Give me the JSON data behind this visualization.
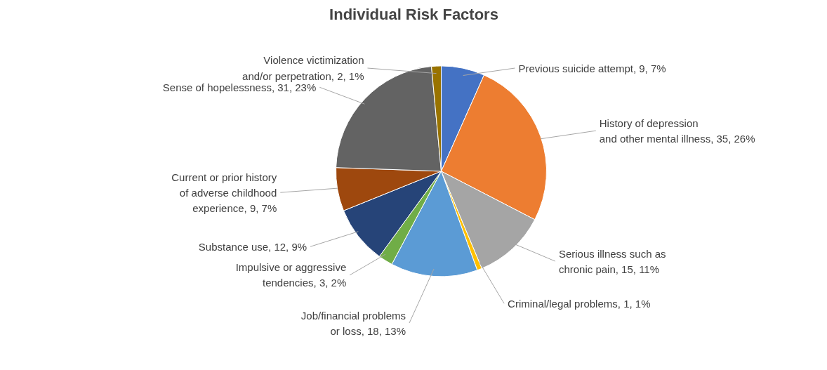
{
  "chart_data": {
    "type": "pie",
    "title": "Individual Risk Factors",
    "categories": [
      "Previous suicide attempt",
      "History of depression and other mental illness",
      "Serious illness such as chronic pain",
      "Criminal/legal problems",
      "Job/financial problems or loss",
      "Impulsive or aggressive tendencies",
      "Substance use",
      "Current or prior history of adverse childhood experience",
      "Sense of hopelessness",
      "Violence victimization and/or perpetration"
    ],
    "values": [
      9,
      35,
      15,
      1,
      18,
      3,
      12,
      9,
      31,
      2
    ],
    "value_labels": [
      "9, 7%",
      "35, 26%",
      "15, 11%",
      "1, 1%",
      "18, 13%",
      "3, 2%",
      "12, 9%",
      "9, 7%",
      "31, 23%",
      "2, 1%"
    ],
    "colors": [
      "#4472c4",
      "#ed7d31",
      "#a5a5a5",
      "#ffc000",
      "#5b9bd5",
      "#70ad47",
      "#264478",
      "#9e480e",
      "#636363",
      "#997300"
    ]
  }
}
